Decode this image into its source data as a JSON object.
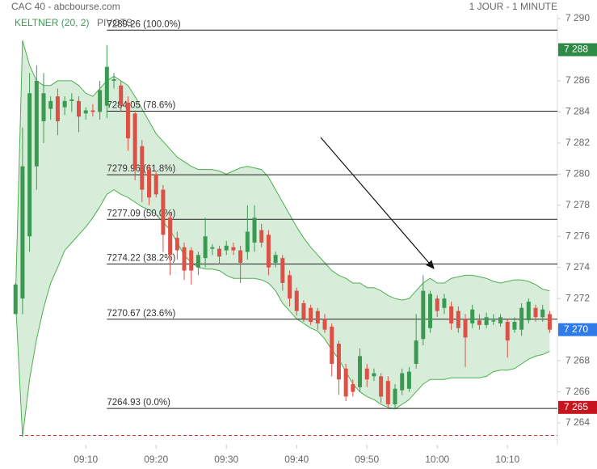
{
  "chart_data": {
    "type": "candlestick",
    "title": "CAC 40 - abcbourse.com",
    "subtitle": "1 JOUR - 1 MINUTE",
    "x": [
      540,
      541,
      542,
      543,
      544,
      545,
      546,
      547,
      548,
      549,
      550,
      551,
      552,
      553,
      554,
      555,
      556,
      557,
      558,
      559,
      560,
      561,
      562,
      563,
      564,
      565,
      566,
      567,
      568,
      569,
      570,
      571,
      572,
      573,
      574,
      575,
      576,
      577,
      578,
      579,
      580,
      581,
      582,
      583,
      584,
      585,
      586,
      587,
      588,
      589,
      590,
      591,
      592,
      593,
      594,
      595,
      596,
      597,
      598,
      599,
      600,
      601,
      602,
      603,
      604,
      605,
      606,
      607,
      608,
      609,
      610,
      611,
      612,
      613,
      614,
      615,
      616
    ],
    "open": [
      7271.0,
      7272,
      7276,
      7280.5,
      7283.4,
      7284.2,
      7285,
      7284.3,
      7284.7,
      7284.7,
      7283.9,
      7284.1,
      7284,
      7284.4,
      7286,
      7285.7,
      7284.6,
      7283.9,
      7281.8,
      7280.3,
      7280,
      7279,
      7277.2,
      7275.9,
      7275.3,
      7275.1,
      7274,
      7274.6,
      7275.2,
      7275.2,
      7275.1,
      7275.3,
      7275.1,
      7275,
      7275.6,
      7276.4,
      7276.1,
      7274.3,
      7274.6,
      7273.5,
      7272.5,
      7271.7,
      7271.4,
      7271.2,
      7270.7,
      7270.2,
      7269.1,
      7267.5,
      7266.5,
      7266.3,
      7267.5,
      7267,
      7267,
      7266.7,
      7265.2,
      7266.1,
      7266.2,
      7267.8,
      7269.4,
      7270.1,
      7272,
      7271.4,
      7271.5,
      7271.2,
      7270.7,
      7270.4,
      7270.6,
      7270.3,
      7270.6,
      7270.4,
      7270.5,
      7270,
      7270,
      7270.6,
      7271.4,
      7270.8,
      7271
    ],
    "high": [
      7273,
      7283,
      7286.5,
      7287,
      7286.5,
      7285,
      7285.5,
      7285,
      7285.2,
      7285,
      7284.3,
      7284.5,
      7286,
      7288.3,
      7286.5,
      7286,
      7285,
      7284.1,
      7282.2,
      7280.6,
      7280.2,
      7279.3,
      7277.5,
      7276.3,
      7275.6,
      7275.3,
      7275,
      7277.2,
      7275.5,
      7275.4,
      7275.7,
      7275.6,
      7275.4,
      7278,
      7278,
      7276.8,
      7276.4,
      7275,
      7274.8,
      7273.8,
      7272.7,
      7271.9,
      7271.6,
      7271.4,
      7271,
      7270.4,
      7269.3,
      7267.8,
      7266.8,
      7268.8,
      7267.8,
      7267.5,
      7267.2,
      7267,
      7266.5,
      7267.5,
      7267.6,
      7271,
      7273.5,
      7272.5,
      7272.2,
      7272.3,
      7271.8,
      7271.5,
      7271,
      7271.6,
      7271,
      7271.1,
      7271,
      7271,
      7270.7,
      7270.8,
      7271.7,
      7272,
      7271.6,
      7271.6,
      7271.2
    ],
    "low": [
      7271,
      7271,
      7275,
      7279,
      7282,
      7283.5,
      7282.5,
      7283.8,
      7284,
      7282.7,
      7283.5,
      7283.7,
      7283.5,
      7283.6,
      7285.5,
      7284,
      7281.5,
      7279.6,
      7278.2,
      7278,
      7278.5,
      7275,
      7273.5,
      7274.5,
      7273.2,
      7272.9,
      7273.5,
      7274,
      7274.8,
      7274.2,
      7274.8,
      7274.8,
      7273,
      7274.5,
      7275,
      7275.3,
      7273.5,
      7274,
      7272.5,
      7271.5,
      7270.9,
      7270.5,
      7270.3,
      7270,
      7269.8,
      7267,
      7265.8,
      7265.4,
      7265.7,
      7266,
      7266.3,
      7266.7,
      7265.3,
      7265,
      7264.9,
      7265.8,
      7266,
      7267.5,
      7269,
      7269.8,
      7270.8,
      7271,
      7270,
      7269.8,
      7267.6,
      7270.1,
      7270,
      7270.1,
      7270.3,
      7270.2,
      7268.2,
      7269.8,
      7269.6,
      7270.4,
      7270.5,
      7270.5,
      7269.8
    ],
    "close": [
      7272.9,
      7280.5,
      7285.2,
      7286,
      7285.2,
      7284.7,
      7283.4,
      7284.7,
      7284.8,
      7283.7,
      7284.1,
      7284.0,
      7285.4,
      7286.9,
      7286.1,
      7284.4,
      7282.3,
      7280.3,
      7279,
      7278.5,
      7278.7,
      7276.1,
      7274.8,
      7275.1,
      7273.8,
      7273.8,
      7274.8,
      7276,
      7275.3,
      7274.7,
      7275.4,
      7275.1,
      7274.3,
      7276.3,
      7277.2,
      7275.6,
      7274,
      7274.8,
      7273,
      7272,
      7271.2,
      7270.7,
      7270.5,
      7270.4,
      7270,
      7267.8,
      7266.8,
      7265.7,
      7266,
      7268.3,
      7266.8,
      7267.2,
      7265.7,
      7265.2,
      7266.2,
      7267.2,
      7267.3,
      7269.3,
      7272.5,
      7272.3,
      7271.2,
      7272,
      7270.4,
      7270.1,
      7269.5,
      7271.3,
      7270.3,
      7270.8,
      7270.6,
      7270.8,
      7269.3,
      7270.5,
      7271.4,
      7271.8,
      7270.8,
      7271.3,
      7270
    ],
    "up_color": "#3a9a52",
    "down_color": "#dc5046",
    "keltner": {
      "name": "KELTNER (20, 2)",
      "color": "#4caf50",
      "upper": [
        7272.0,
        7288.6,
        7287.0,
        7286.0,
        7285.7,
        7285.7,
        7286.0,
        7286.0,
        7286.0,
        7285.7,
        7285.2,
        7285.0,
        7285.5,
        7286.0,
        7286.3,
        7286.0,
        7285.7,
        7285.0,
        7284.2,
        7283.4,
        7282.6,
        7282.1,
        7281.6,
        7281.1,
        7280.8,
        7280.5,
        7280.3,
        7280.3,
        7280.3,
        7280.2,
        7280.0,
        7280.2,
        7280.4,
        7280.5,
        7280.4,
        7280.3,
        7279.8,
        7279.0,
        7278.2,
        7277.4,
        7276.6,
        7275.9,
        7275.3,
        7274.8,
        7274.3,
        7273.8,
        7273.5,
        7273.3,
        7273.0,
        7273.0,
        7272.7,
        7272.7,
        7272.5,
        7272.2,
        7272.0,
        7271.9,
        7272.0,
        7272.5,
        7273.0,
        7273.3,
        7273.0,
        7273.0,
        7273.3,
        7273.4,
        7273.5,
        7273.5,
        7273.4,
        7273.3,
        7273.1,
        7273.0,
        7273.1,
        7273.2,
        7273.2,
        7273.1,
        7272.9,
        7272.6,
        7272.5
      ],
      "lower": [
        7272.0,
        7263.1,
        7266.8,
        7269.4,
        7271.4,
        7273.0,
        7274.0,
        7275.1,
        7275.6,
        7276.1,
        7276.6,
        7277.2,
        7277.9,
        7278.7,
        7279.0,
        7278.7,
        7278.5,
        7278.2,
        7277.9,
        7277.7,
        7277.4,
        7276.9,
        7276.4,
        7275.6,
        7274.8,
        7274.3,
        7274.0,
        7273.9,
        7273.9,
        7273.8,
        7273.5,
        7273.3,
        7273.3,
        7273.3,
        7273.3,
        7273.2,
        7273.0,
        7272.5,
        7271.7,
        7271.2,
        7270.7,
        7270.4,
        7270.1,
        7269.9,
        7269.4,
        7268.7,
        7268.1,
        7267.3,
        7266.5,
        7266.0,
        7265.7,
        7265.5,
        7265.2,
        7265.0,
        7264.9,
        7265.2,
        7265.5,
        7266.0,
        7266.5,
        7266.8,
        7266.8,
        7266.8,
        7266.9,
        7266.9,
        7266.9,
        7266.9,
        7266.9,
        7267.0,
        7267.3,
        7267.4,
        7267.4,
        7267.5,
        7267.8,
        7268.1,
        7268.3,
        7268.4,
        7268.6
      ]
    },
    "pivots": {
      "name": "PIVOTS",
      "start_x": 553,
      "levels": [
        {
          "value": 7289.26,
          "label": "7289.26 (100.0%)"
        },
        {
          "value": 7284.05,
          "label": "7284.05 (78.6%)"
        },
        {
          "value": 7279.96,
          "label": "7279.96 (61.8%)"
        },
        {
          "value": 7277.09,
          "label": "7277.09 (50.0%)"
        },
        {
          "value": 7274.22,
          "label": "7274.22 (38.2%)"
        },
        {
          "value": 7270.67,
          "label": "7270.67 (23.6%)"
        },
        {
          "value": 7264.93,
          "label": "7264.93 (0.0%)"
        }
      ]
    },
    "price_tags": [
      {
        "value": 7288,
        "label": "7 288",
        "color": "#2e8b45"
      },
      {
        "value": 7270,
        "label": "7 270",
        "color": "#2f7bea"
      },
      {
        "value": 7265,
        "label": "7 265",
        "color": "#c8141e"
      }
    ],
    "reference_line": {
      "value": 7263.2,
      "color": "#d33"
    },
    "xlim": [
      539.4,
      617.1
    ],
    "xticks": [
      {
        "value": 550,
        "label": "09:10"
      },
      {
        "value": 560,
        "label": "09:20"
      },
      {
        "value": 570,
        "label": "09:30"
      },
      {
        "value": 580,
        "label": "09:40"
      },
      {
        "value": 590,
        "label": "09:50"
      },
      {
        "value": 600,
        "label": "10:00"
      },
      {
        "value": 610,
        "label": "10:10"
      }
    ],
    "ylim": [
      7262.6,
      7290.26
    ],
    "yticks": [
      {
        "value": 7264,
        "label": "7 264"
      },
      {
        "value": 7266,
        "label": "7 266"
      },
      {
        "value": 7268,
        "label": "7 268"
      },
      {
        "value": 7270,
        "label": "7 270"
      },
      {
        "value": 7272,
        "label": "7 272"
      },
      {
        "value": 7274,
        "label": "7 274"
      },
      {
        "value": 7276,
        "label": "7 276"
      },
      {
        "value": 7278,
        "label": "7 278"
      },
      {
        "value": 7280,
        "label": "7 280"
      },
      {
        "value": 7282,
        "label": "7 282"
      },
      {
        "value": 7284,
        "label": "7 284"
      },
      {
        "value": 7286,
        "label": "7 286"
      },
      {
        "value": 7288,
        "label": "7 288"
      },
      {
        "value": 7290,
        "label": "7 290"
      }
    ]
  }
}
